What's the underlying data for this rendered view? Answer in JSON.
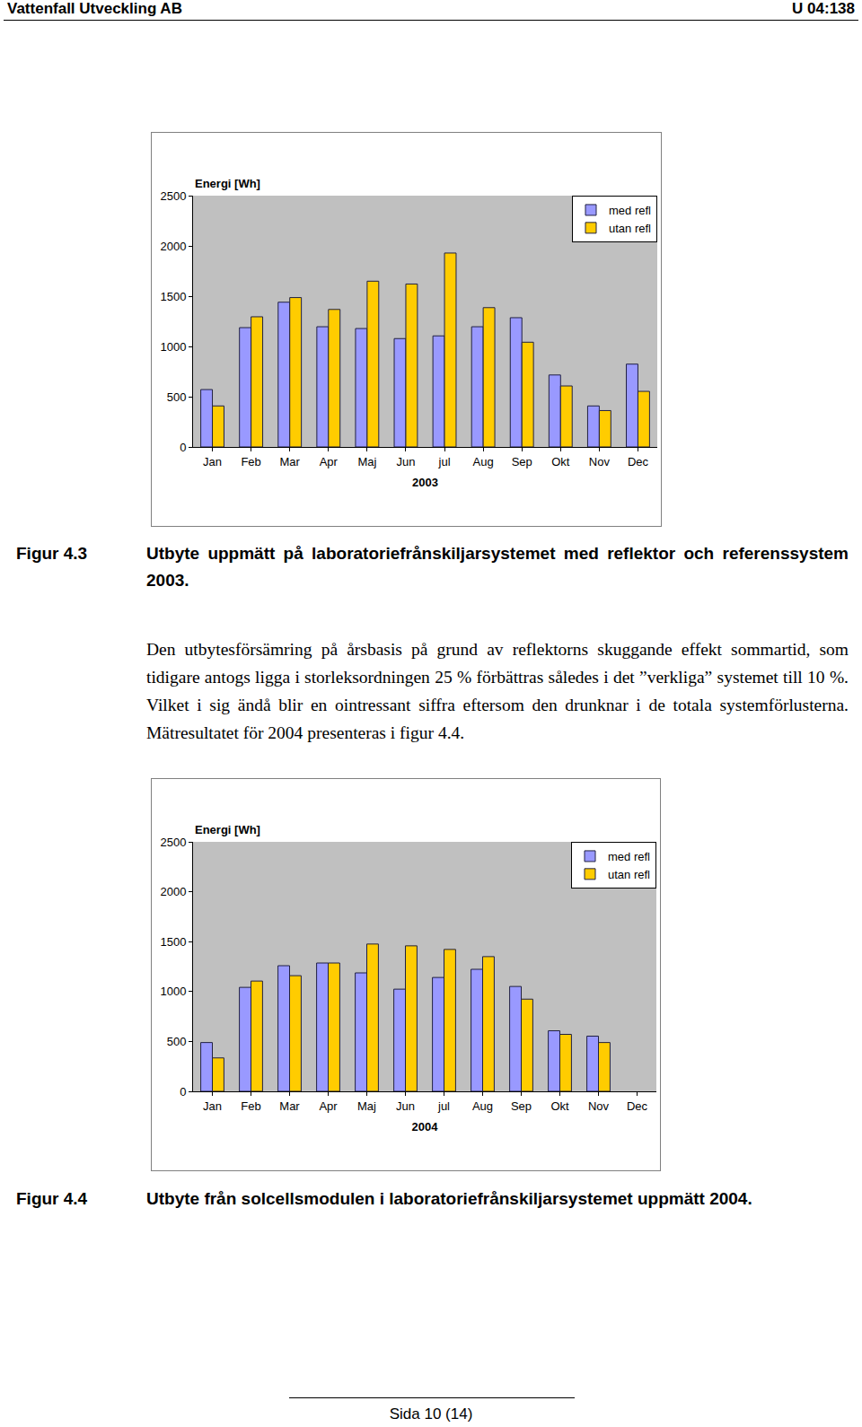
{
  "header": {
    "left": "Vattenfall Utveckling AB",
    "right": "U 04:138"
  },
  "figures": [
    {
      "label": "Figur 4.3",
      "caption": "Utbyte uppmätt på laboratoriefrånskiljarsystemet med reflektor och referenssystem 2003."
    },
    {
      "label": "Figur 4.4",
      "caption": "Utbyte från solcellsmodulen i laboratoriefrånskiljarsystemet uppmätt 2004."
    }
  ],
  "paragraph": "Den utbytesförsämring på årsbasis på grund av reflektorns skuggande effekt sommartid, som tidigare antogs ligga i storleksordningen 25 % förbättras således i det ”verkliga” systemet till 10 %. Vilket i sig ändå blir en ointressant siffra eftersom den drunknar i de totala systemförlusterna. Mätresultatet för 2004 presenteras i figur 4.4.",
  "footer": "Sida 10 (14)",
  "chart_data": [
    {
      "type": "bar",
      "y_label": "Energi [Wh]",
      "x_label": "2003",
      "categories": [
        "Jan",
        "Feb",
        "Mar",
        "Apr",
        "Maj",
        "Jun",
        "jul",
        "Aug",
        "Sep",
        "Okt",
        "Nov",
        "Dec"
      ],
      "series": [
        {
          "name": "med refl",
          "color": "#9999ff",
          "values": [
            571,
            1187,
            1440,
            1196,
            1178,
            1078,
            1105,
            1196,
            1286,
            716,
            408,
            824
          ]
        },
        {
          "name": "utan refl",
          "color": "#ffcc00",
          "values": [
            408,
            1295,
            1486,
            1368,
            1649,
            1621,
            1929,
            1386,
            1042,
            607,
            362,
            553
          ]
        }
      ],
      "ylim": [
        0,
        2500
      ],
      "yticks": [
        0,
        500,
        1000,
        1500,
        2000,
        2500
      ],
      "grid": false,
      "legend": "upper right"
    },
    {
      "type": "bar",
      "y_label": "Energi [Wh]",
      "x_label": "2004",
      "categories": [
        "Jan",
        "Feb",
        "Mar",
        "Apr",
        "Maj",
        "Jun",
        "jul",
        "Aug",
        "Sep",
        "Okt",
        "Nov",
        "Dec"
      ],
      "series": [
        {
          "name": "med refl",
          "color": "#9999ff",
          "values": [
            489,
            1042,
            1259,
            1286,
            1187,
            1024,
            1141,
            1223,
            1051,
            607,
            553,
            null
          ]
        },
        {
          "name": "utan refl",
          "color": "#ffcc00",
          "values": [
            335,
            1105,
            1159,
            1286,
            1476,
            1458,
            1422,
            1350,
            924,
            571,
            489,
            null
          ]
        }
      ],
      "ylim": [
        0,
        2500
      ],
      "yticks": [
        0,
        500,
        1000,
        1500,
        2000,
        2500
      ],
      "grid": false,
      "legend": "upper right"
    }
  ]
}
